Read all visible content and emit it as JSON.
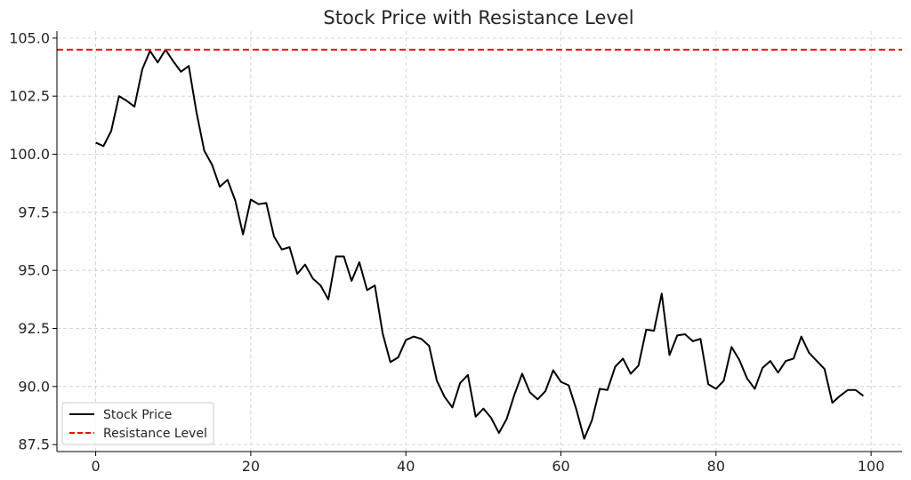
{
  "chart_data": {
    "type": "line",
    "title": "Stock Price with Resistance Level",
    "xlabel": "",
    "ylabel": "",
    "xlim": [
      -5,
      104
    ],
    "ylim": [
      87.2,
      105.3
    ],
    "x_ticks": [
      0,
      20,
      40,
      60,
      80,
      100
    ],
    "y_ticks": [
      87.5,
      90.0,
      92.5,
      95.0,
      97.5,
      100.0,
      102.5,
      105.0
    ],
    "grid": true,
    "legend_position": "lower-left",
    "series": [
      {
        "name": "Stock Price",
        "color": "#000000",
        "style": "solid",
        "x": [
          0,
          1,
          2,
          3,
          4,
          5,
          6,
          7,
          8,
          9,
          10,
          11,
          12,
          13,
          14,
          15,
          16,
          17,
          18,
          19,
          20,
          21,
          22,
          23,
          24,
          25,
          26,
          27,
          28,
          29,
          30,
          31,
          32,
          33,
          34,
          35,
          36,
          37,
          38,
          39,
          40,
          41,
          42,
          43,
          44,
          45,
          46,
          47,
          48,
          49,
          50,
          51,
          52,
          53,
          54,
          55,
          56,
          57,
          58,
          59,
          60,
          61,
          62,
          63,
          64,
          65,
          66,
          67,
          68,
          69,
          70,
          71,
          72,
          73,
          74,
          75,
          76,
          77,
          78,
          79,
          80,
          81,
          82,
          83,
          84,
          85,
          86,
          87,
          88,
          89,
          90,
          91,
          92,
          93,
          94,
          95,
          96,
          97,
          98,
          99
        ],
        "values": [
          100.5,
          100.35,
          101.0,
          102.5,
          102.3,
          102.05,
          103.65,
          104.45,
          103.95,
          104.5,
          104.0,
          103.55,
          103.8,
          101.8,
          100.15,
          99.55,
          98.6,
          98.9,
          98.0,
          96.55,
          98.05,
          97.85,
          97.9,
          96.45,
          95.9,
          96.0,
          94.85,
          95.25,
          94.65,
          94.35,
          93.75,
          95.6,
          95.6,
          94.55,
          95.35,
          94.15,
          94.35,
          92.3,
          91.05,
          91.25,
          92.0,
          92.15,
          92.05,
          91.75,
          90.25,
          89.55,
          89.1,
          90.15,
          90.5,
          88.7,
          89.05,
          88.65,
          88.0,
          88.6,
          89.65,
          90.55,
          89.75,
          89.45,
          89.8,
          90.7,
          90.2,
          90.05,
          89.0,
          87.75,
          88.55,
          89.9,
          89.85,
          90.85,
          91.2,
          90.55,
          90.9,
          92.45,
          92.4,
          94.0,
          91.35,
          92.2,
          92.25,
          91.95,
          92.05,
          90.1,
          89.9,
          90.25,
          91.7,
          91.15,
          90.35,
          89.9,
          90.8,
          91.1,
          90.6,
          91.1,
          91.2,
          92.15,
          91.45,
          91.1,
          90.75,
          89.3,
          89.6,
          89.85,
          89.85,
          89.6
        ]
      },
      {
        "name": "Resistance Level",
        "color": "#ff0000",
        "style": "dashed",
        "type": "horizontal-line",
        "value": 104.5
      }
    ]
  }
}
